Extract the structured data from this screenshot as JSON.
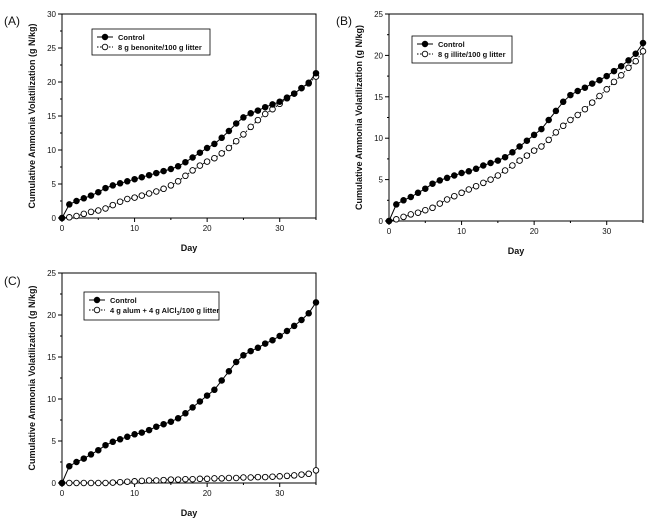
{
  "chart_data": [
    {
      "type": "line",
      "panel_label": "(A)",
      "xlabel": "Day",
      "ylabel": "Cumulative Ammonia Volatilization (g N/kg)",
      "xlim": [
        0,
        35
      ],
      "ylim": [
        0,
        30
      ],
      "xticks": [
        0,
        10,
        20,
        30
      ],
      "yticks": [
        0,
        5,
        10,
        15,
        20,
        25,
        30
      ],
      "grid": false,
      "legend_position": "top-left",
      "x": [
        0,
        1,
        2,
        3,
        4,
        5,
        6,
        7,
        8,
        9,
        10,
        11,
        12,
        13,
        14,
        15,
        16,
        17,
        18,
        19,
        20,
        21,
        22,
        23,
        24,
        25,
        26,
        27,
        28,
        29,
        30,
        31,
        32,
        33,
        34,
        35
      ],
      "series": [
        {
          "name": "Control",
          "marker": "filled",
          "line": "solid",
          "legend_main": "Control",
          "values": [
            0,
            2.0,
            2.5,
            2.9,
            3.3,
            3.8,
            4.4,
            4.8,
            5.1,
            5.4,
            5.7,
            6.0,
            6.3,
            6.6,
            6.9,
            7.2,
            7.6,
            8.2,
            8.9,
            9.6,
            10.3,
            10.9,
            11.8,
            12.8,
            13.9,
            14.8,
            15.4,
            15.8,
            16.3,
            16.7,
            17.1,
            17.7,
            18.3,
            19.1,
            19.9,
            21.3
          ]
        },
        {
          "name": "8 g benonite/100 g litter",
          "marker": "open",
          "line": "dotted",
          "legend_main": "8 g benonite/100 g litter",
          "values": [
            0,
            0.1,
            0.3,
            0.6,
            0.9,
            1.1,
            1.4,
            1.9,
            2.4,
            2.8,
            3.0,
            3.3,
            3.6,
            3.9,
            4.3,
            4.8,
            5.4,
            6.2,
            7.0,
            7.7,
            8.3,
            8.8,
            9.5,
            10.3,
            11.3,
            12.3,
            13.4,
            14.4,
            15.3,
            16.0,
            16.8,
            17.6,
            18.3,
            19.1,
            19.8,
            20.8
          ]
        }
      ]
    },
    {
      "type": "line",
      "panel_label": "(B)",
      "xlabel": "Day",
      "ylabel": "Cumulative Ammonia Volatilization (g N/kg)",
      "xlim": [
        0,
        35
      ],
      "ylim": [
        0,
        25
      ],
      "xticks": [
        0,
        10,
        20,
        30
      ],
      "yticks": [
        0,
        5,
        10,
        15,
        20,
        25
      ],
      "grid": false,
      "legend_position": "top-left",
      "x": [
        0,
        1,
        2,
        3,
        4,
        5,
        6,
        7,
        8,
        9,
        10,
        11,
        12,
        13,
        14,
        15,
        16,
        17,
        18,
        19,
        20,
        21,
        22,
        23,
        24,
        25,
        26,
        27,
        28,
        29,
        30,
        31,
        32,
        33,
        34,
        35
      ],
      "series": [
        {
          "name": "Control",
          "marker": "filled",
          "line": "solid",
          "legend_main": "Control",
          "values": [
            0,
            2.0,
            2.5,
            2.9,
            3.4,
            3.9,
            4.5,
            4.9,
            5.2,
            5.5,
            5.8,
            6.0,
            6.3,
            6.7,
            7.0,
            7.3,
            7.7,
            8.3,
            9.0,
            9.7,
            10.4,
            11.1,
            12.2,
            13.3,
            14.4,
            15.2,
            15.7,
            16.1,
            16.6,
            17.0,
            17.5,
            18.1,
            18.7,
            19.4,
            20.2,
            21.5
          ]
        },
        {
          "name": "8 g illite/100 g litter",
          "marker": "open",
          "line": "dotted",
          "legend_main": "8 g illite/100 g litter",
          "values": [
            0,
            0.2,
            0.5,
            0.8,
            1.0,
            1.3,
            1.6,
            2.1,
            2.6,
            3.0,
            3.4,
            3.8,
            4.2,
            4.6,
            5.0,
            5.5,
            6.1,
            6.7,
            7.3,
            7.9,
            8.5,
            9.0,
            9.8,
            10.7,
            11.5,
            12.2,
            12.8,
            13.5,
            14.3,
            15.1,
            15.9,
            16.8,
            17.6,
            18.5,
            19.3,
            20.5
          ]
        }
      ]
    },
    {
      "type": "line",
      "panel_label": "(C)",
      "xlabel": "Day",
      "ylabel": "Cumulative Ammonia Volatilization (g N/kg)",
      "xlim": [
        0,
        35
      ],
      "ylim": [
        0,
        25
      ],
      "xticks": [
        0,
        10,
        20,
        30
      ],
      "yticks": [
        0,
        5,
        10,
        15,
        20,
        25
      ],
      "grid": false,
      "legend_position": "top-left",
      "x": [
        0,
        1,
        2,
        3,
        4,
        5,
        6,
        7,
        8,
        9,
        10,
        11,
        12,
        13,
        14,
        15,
        16,
        17,
        18,
        19,
        20,
        21,
        22,
        23,
        24,
        25,
        26,
        27,
        28,
        29,
        30,
        31,
        32,
        33,
        34,
        35
      ],
      "series": [
        {
          "name": "Control",
          "marker": "filled",
          "line": "solid",
          "legend_main": "Control",
          "values": [
            0,
            2.0,
            2.5,
            2.9,
            3.4,
            3.9,
            4.5,
            4.9,
            5.2,
            5.5,
            5.8,
            6.0,
            6.3,
            6.7,
            7.0,
            7.3,
            7.7,
            8.3,
            9.0,
            9.7,
            10.4,
            11.1,
            12.2,
            13.3,
            14.4,
            15.2,
            15.7,
            16.1,
            16.6,
            17.0,
            17.5,
            18.1,
            18.7,
            19.4,
            20.2,
            21.5
          ]
        },
        {
          "name": "4 g alum + 4 g AlCl3/100 g litter",
          "marker": "open",
          "line": "dotted",
          "legend_main": "4 g alum + 4 g AlCl",
          "legend_sub": "3",
          "legend_tail": "/100 g litter",
          "values": [
            0,
            0,
            0,
            0,
            0,
            0,
            0,
            0.05,
            0.1,
            0.15,
            0.2,
            0.25,
            0.3,
            0.3,
            0.35,
            0.4,
            0.4,
            0.45,
            0.45,
            0.5,
            0.5,
            0.55,
            0.55,
            0.6,
            0.6,
            0.65,
            0.65,
            0.7,
            0.7,
            0.75,
            0.8,
            0.85,
            0.9,
            1.0,
            1.1,
            1.5
          ]
        }
      ]
    }
  ]
}
